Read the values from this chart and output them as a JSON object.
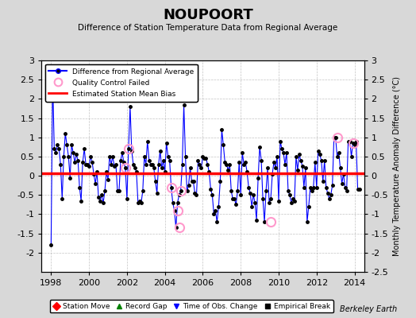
{
  "title": "NOUPOORT",
  "subtitle": "Difference of Station Temperature Data from Regional Average",
  "ylabel": "Monthly Temperature Anomaly Difference (°C)",
  "credit": "Berkeley Earth",
  "bias": 0.07,
  "ylim": [
    -2.5,
    3.0
  ],
  "xlim": [
    1997.5,
    2014.5
  ],
  "xticks": [
    1998,
    2000,
    2002,
    2004,
    2006,
    2008,
    2010,
    2012,
    2014
  ],
  "yticks_left": [
    -2.0,
    -1.5,
    -1.0,
    -0.5,
    0.0,
    0.5,
    1.0,
    1.5,
    2.0,
    2.5,
    3.0
  ],
  "yticks_right": [
    -2.5,
    -2.0,
    -1.5,
    -1.0,
    -0.5,
    0.0,
    0.5,
    1.0,
    1.5,
    2.0,
    2.5,
    3.0
  ],
  "line_color": "#0000FF",
  "bias_color": "#FF0000",
  "qc_color": "#FF99CC",
  "bg_color": "#D8D8D8",
  "plot_bg_color": "#FFFFFF",
  "grid_color": "#AAAAAA",
  "legend1_labels": [
    "Difference from Regional Average",
    "Quality Control Failed",
    "Estimated Station Mean Bias"
  ],
  "legend2_labels": [
    "Station Move",
    "Record Gap",
    "Time of Obs. Change",
    "Empirical Break"
  ],
  "legend2_colors": [
    "#FF0000",
    "#008000",
    "#0000FF",
    "#000000"
  ],
  "legend2_markers": [
    "D",
    "^",
    "v",
    "s"
  ],
  "data_x": [
    1998.0,
    1998.083,
    1998.167,
    1998.25,
    1998.333,
    1998.417,
    1998.5,
    1998.583,
    1998.667,
    1998.75,
    1998.833,
    1998.917,
    1999.0,
    1999.083,
    1999.167,
    1999.25,
    1999.333,
    1999.417,
    1999.5,
    1999.583,
    1999.667,
    1999.75,
    1999.833,
    1999.917,
    2000.0,
    2000.083,
    2000.167,
    2000.25,
    2000.333,
    2000.417,
    2000.5,
    2000.583,
    2000.667,
    2000.75,
    2000.833,
    2000.917,
    2001.0,
    2001.083,
    2001.167,
    2001.25,
    2001.333,
    2001.417,
    2001.5,
    2001.583,
    2001.667,
    2001.75,
    2001.833,
    2001.917,
    2002.0,
    2002.083,
    2002.167,
    2002.25,
    2002.333,
    2002.417,
    2002.5,
    2002.583,
    2002.667,
    2002.75,
    2002.833,
    2002.917,
    2003.0,
    2003.083,
    2003.167,
    2003.25,
    2003.333,
    2003.417,
    2003.5,
    2003.583,
    2003.667,
    2003.75,
    2003.833,
    2003.917,
    2004.0,
    2004.083,
    2004.167,
    2004.25,
    2004.333,
    2004.417,
    2004.5,
    2004.583,
    2004.667,
    2004.75,
    2004.833,
    2004.917,
    2005.0,
    2005.083,
    2005.167,
    2005.25,
    2005.333,
    2005.417,
    2005.5,
    2005.583,
    2005.667,
    2005.75,
    2005.833,
    2005.917,
    2006.0,
    2006.083,
    2006.167,
    2006.25,
    2006.333,
    2006.417,
    2006.5,
    2006.583,
    2006.667,
    2006.75,
    2006.833,
    2006.917,
    2007.0,
    2007.083,
    2007.167,
    2007.25,
    2007.333,
    2007.417,
    2007.5,
    2007.583,
    2007.667,
    2007.75,
    2007.833,
    2007.917,
    2008.0,
    2008.083,
    2008.167,
    2008.25,
    2008.333,
    2008.417,
    2008.5,
    2008.583,
    2008.667,
    2008.75,
    2008.833,
    2008.917,
    2009.0,
    2009.083,
    2009.167,
    2009.25,
    2009.333,
    2009.417,
    2009.5,
    2009.583,
    2009.667,
    2009.75,
    2009.833,
    2009.917,
    2010.0,
    2010.083,
    2010.167,
    2010.25,
    2010.333,
    2010.417,
    2010.5,
    2010.583,
    2010.667,
    2010.75,
    2010.833,
    2010.917,
    2011.0,
    2011.083,
    2011.167,
    2011.25,
    2011.333,
    2011.417,
    2011.5,
    2011.583,
    2011.667,
    2011.75,
    2011.833,
    2011.917,
    2012.0,
    2012.083,
    2012.167,
    2012.25,
    2012.333,
    2012.417,
    2012.5,
    2012.583,
    2012.667,
    2012.75,
    2012.833,
    2012.917,
    2013.0,
    2013.083,
    2013.167,
    2013.25,
    2013.333,
    2013.417,
    2013.5,
    2013.583,
    2013.667,
    2013.75,
    2013.833,
    2013.917,
    2014.0,
    2014.083,
    2014.167,
    2014.25
  ],
  "data_y": [
    -1.8,
    2.5,
    0.7,
    0.6,
    0.8,
    0.7,
    0.3,
    -0.6,
    0.5,
    1.1,
    0.8,
    0.5,
    -0.05,
    0.8,
    0.6,
    0.35,
    0.55,
    0.4,
    -0.3,
    -0.65,
    0.35,
    0.7,
    0.3,
    0.3,
    0.25,
    0.5,
    0.35,
    0.05,
    -0.2,
    0.1,
    -0.55,
    -0.65,
    -0.5,
    -0.7,
    -0.4,
    0.1,
    -0.1,
    0.5,
    0.3,
    0.5,
    0.25,
    0.3,
    -0.4,
    -0.4,
    0.4,
    0.6,
    0.35,
    0.2,
    -0.6,
    0.7,
    1.8,
    0.65,
    0.3,
    0.2,
    0.1,
    -0.7,
    -0.65,
    -0.7,
    -0.4,
    0.5,
    0.3,
    0.9,
    0.4,
    0.3,
    0.3,
    0.2,
    -0.15,
    -0.45,
    0.3,
    0.65,
    0.2,
    0.4,
    0.1,
    0.85,
    0.5,
    0.4,
    -0.3,
    -0.7,
    -0.9,
    -1.35,
    -0.7,
    -0.5,
    -0.4,
    0.3,
    1.85,
    0.5,
    -0.4,
    -0.25,
    0.2,
    -0.15,
    -0.15,
    -0.45,
    -0.5,
    0.4,
    0.3,
    0.2,
    0.5,
    0.45,
    0.45,
    0.3,
    0.1,
    -0.35,
    -0.5,
    -1.0,
    -0.9,
    -1.2,
    -0.8,
    -0.15,
    1.2,
    0.8,
    0.35,
    0.3,
    0.15,
    0.3,
    -0.4,
    -0.6,
    -0.6,
    -0.75,
    -0.4,
    0.35,
    -0.5,
    0.6,
    0.3,
    0.35,
    0.1,
    -0.3,
    -0.45,
    -0.8,
    -0.5,
    -0.7,
    -1.15,
    -0.05,
    0.75,
    0.4,
    -0.6,
    -1.2,
    -0.4,
    0.2,
    -0.7,
    -0.6,
    0.05,
    0.35,
    0.2,
    0.5,
    -0.65,
    0.9,
    0.7,
    0.6,
    0.3,
    0.6,
    -0.4,
    -0.5,
    -0.7,
    -0.6,
    -0.65,
    0.5,
    0.15,
    0.55,
    0.4,
    0.25,
    -0.3,
    0.2,
    -1.2,
    -0.8,
    -0.3,
    -0.4,
    -0.3,
    0.35,
    -0.3,
    0.65,
    0.55,
    0.4,
    -0.15,
    0.4,
    -0.3,
    -0.45,
    -0.6,
    -0.5,
    -0.25,
    1.0,
    1.0,
    0.5,
    0.6,
    0.2,
    -0.2,
    0.05,
    -0.3,
    -0.4,
    0.9,
    0.9,
    0.5,
    0.85,
    0.8,
    0.9,
    -0.35,
    -0.35
  ],
  "qc_failed_x": [
    1998.083,
    2001.917,
    2002.083,
    2004.333,
    2004.667,
    2004.75,
    2004.833,
    2009.583,
    2013.083,
    2013.917
  ],
  "qc_failed_y": [
    2.5,
    0.2,
    0.7,
    -0.3,
    -0.9,
    -1.35,
    -0.4,
    -1.2,
    1.0,
    0.85
  ]
}
